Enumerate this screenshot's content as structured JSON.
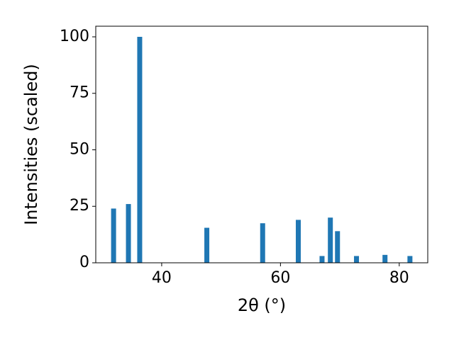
{
  "chart_data": {
    "type": "bar",
    "xlabel": "2θ (°)",
    "ylabel": "Intensities (scaled)",
    "x": [
      31.9,
      34.4,
      36.3,
      47.6,
      57.0,
      63.0,
      67.0,
      68.4,
      69.6,
      72.8,
      77.6,
      81.8
    ],
    "values": [
      24,
      26,
      100,
      15.5,
      17.5,
      19,
      3,
      20,
      14,
      3,
      3.5,
      3
    ],
    "color": "#1f77b4",
    "xlim": [
      28.9,
      84.8
    ],
    "ylim": [
      0,
      104.7
    ],
    "xticks": [
      40,
      60,
      80
    ],
    "yticks": [
      0,
      25,
      50,
      75,
      100
    ],
    "grid": false
  }
}
